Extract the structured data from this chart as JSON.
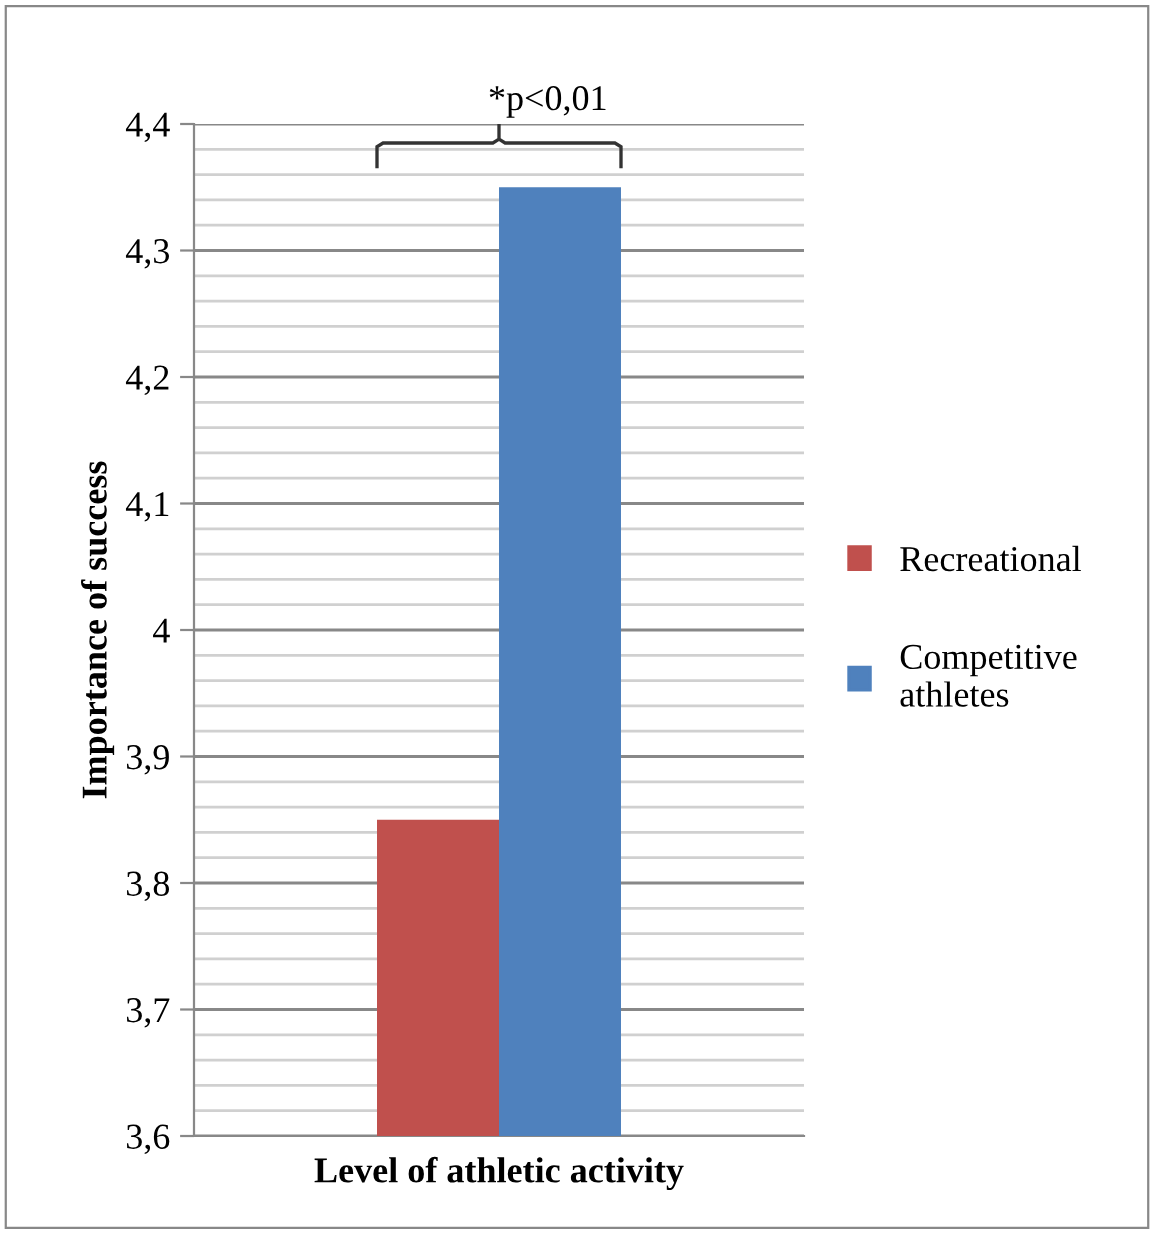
{
  "chart_data": {
    "type": "bar",
    "xlabel": "Level of athletic activity",
    "ylabel": "Importance of success",
    "categories": [
      null
    ],
    "series": [
      {
        "name": "Recreational",
        "color": "#c0504d",
        "values": [
          3.85
        ]
      },
      {
        "name": "Competitive athletes",
        "color": "#4f81bd",
        "values": [
          4.35
        ]
      }
    ],
    "ylim": [
      3.6,
      4.4
    ],
    "yticks": [
      {
        "value": 3.6,
        "label": "3,6"
      },
      {
        "value": 3.7,
        "label": "3,7"
      },
      {
        "value": 3.8,
        "label": "3,8"
      },
      {
        "value": 3.9,
        "label": "3,9"
      },
      4,
      {
        "value": 4.1,
        "label": "4,1"
      },
      {
        "value": 4.2,
        "label": "4,2"
      },
      {
        "value": 4.3,
        "label": "4,3"
      },
      {
        "value": 4.4,
        "label": "4,4"
      }
    ],
    "grid": "y",
    "legend": "right",
    "annotations": [
      "*p<0,01"
    ]
  }
}
